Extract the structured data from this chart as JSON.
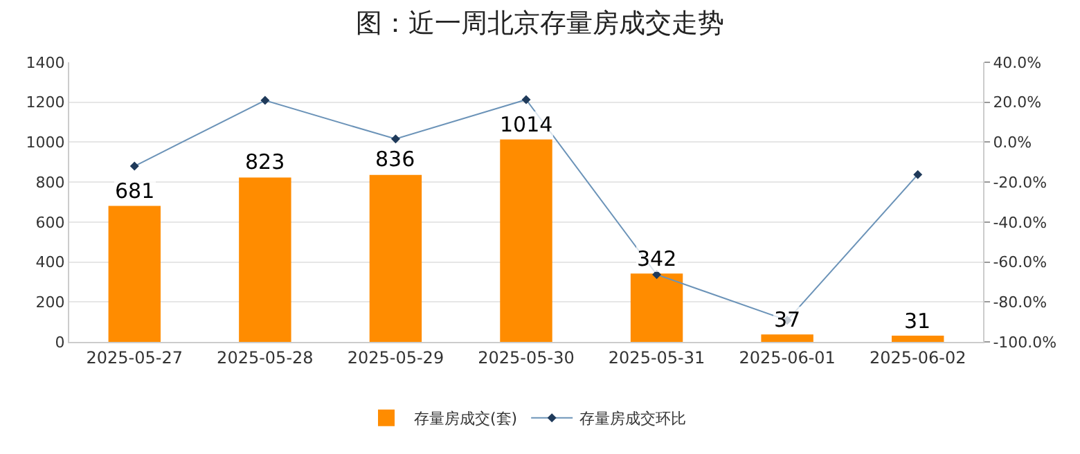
{
  "chart_data": {
    "type": "bar",
    "title": "图：近一周北京存量房成交走势",
    "categories": [
      "2025-05-27",
      "2025-05-28",
      "2025-05-29",
      "2025-05-30",
      "2025-05-31",
      "2025-06-01",
      "2025-06-02"
    ],
    "series": [
      {
        "name": "存量房成交(套)",
        "color": "#ff8c00",
        "values": [
          681,
          823,
          836,
          1014,
          342,
          37,
          31
        ],
        "value_labels": [
          "681",
          "823",
          "836",
          "1014",
          "342",
          "37",
          "31"
        ]
      },
      {
        "name": "存量房成交环比",
        "type": "line",
        "axis": "y2",
        "color": "#6b93b8",
        "marker": "diamond",
        "values": [
          -12,
          20.9,
          1.6,
          21.3,
          -66.3,
          -89.2,
          -16.2
        ]
      }
    ],
    "ylim": [
      0,
      1400
    ],
    "yticks": [
      0,
      200,
      400,
      600,
      800,
      1000,
      1200,
      1400
    ],
    "y2lim": [
      -100,
      40
    ],
    "y2ticks": [
      {
        "value": -100,
        "label": "-100.0%"
      },
      {
        "value": -80,
        "label": "-80.0%"
      },
      {
        "value": -60,
        "label": "-60.0%"
      },
      {
        "value": -40,
        "label": "-40.0%"
      },
      {
        "value": -20,
        "label": "-20.0%"
      },
      {
        "value": 0,
        "label": "0.0%"
      },
      {
        "value": 20,
        "label": "20.0%"
      },
      {
        "value": 40,
        "label": "40.0%"
      }
    ],
    "grid": "y",
    "legend": "bottom"
  }
}
